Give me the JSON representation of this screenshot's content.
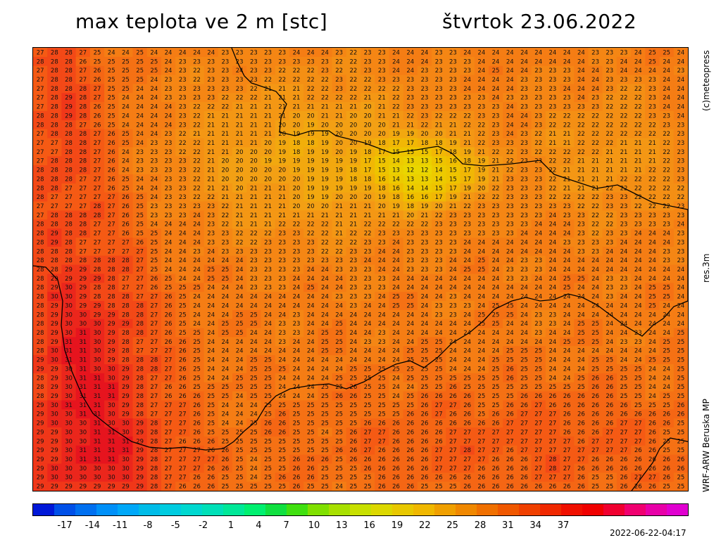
{
  "header": {
    "title_left": "max teplota ve 2 m [stc]",
    "title_right": "štvrtok 23.06.2022"
  },
  "side_labels": {
    "copyright": "(c)meteopress",
    "resolution": "res.3m",
    "model": "WRF-ARW Beruska MP"
  },
  "timestamp": "2022-06-22-04:17",
  "map": {
    "region": "Czech Republic",
    "grid_cols": 46,
    "grid_rows": 49,
    "value_min": 11,
    "value_max": 31,
    "border_color": "#000000"
  },
  "colorbar": {
    "tick_labels": [
      "-17",
      "-14",
      "-11",
      "-8",
      "-5",
      "-2",
      "1",
      "4",
      "7",
      "10",
      "13",
      "16",
      "19",
      "22",
      "25",
      "28",
      "31",
      "34",
      "37"
    ],
    "colors": [
      "#0018d8",
      "#0050e8",
      "#0070f0",
      "#0090f8",
      "#00a8f8",
      "#00bce8",
      "#00cce0",
      "#00d8d0",
      "#00e0b8",
      "#00e898",
      "#00f070",
      "#10e040",
      "#40e010",
      "#80e000",
      "#a8e000",
      "#c8e000",
      "#dcd800",
      "#e8c800",
      "#f0b800",
      "#f0a000",
      "#f08800",
      "#f07000",
      "#f05800",
      "#f04000",
      "#f02800",
      "#f01000",
      "#f00000",
      "#f00030",
      "#f00070",
      "#e800a8",
      "#e000d0"
    ]
  }
}
